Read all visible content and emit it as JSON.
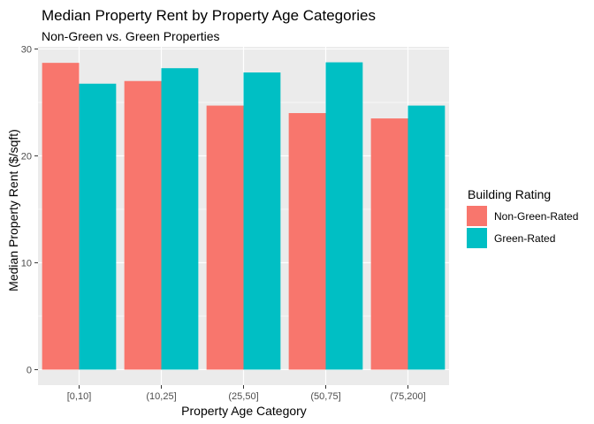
{
  "chart_data": {
    "type": "bar",
    "title": "Median Property Rent by Property Age Categories",
    "subtitle": "Non-Green vs. Green Properties",
    "xlabel": "Property Age Category",
    "ylabel": "Median Property Rent ($/sqft)",
    "categories": [
      "[0,10]",
      "(10,25]",
      "(25,50]",
      "(50,75]",
      "(75,200]"
    ],
    "series": [
      {
        "name": "Non-Green-Rated",
        "color": "#F8766D",
        "values": [
          28.7,
          27.0,
          24.7,
          24.0,
          23.5
        ]
      },
      {
        "name": "Green-Rated",
        "color": "#00BFC4",
        "values": [
          26.75,
          28.2,
          27.8,
          28.75,
          24.7
        ]
      }
    ],
    "ylim": [
      -1.45,
      30.2
    ],
    "yticks": [
      0,
      10,
      20,
      30
    ],
    "grid": true,
    "legend": {
      "title": "Building Rating",
      "position": "right"
    },
    "panel_background": "#EBEBEB"
  }
}
